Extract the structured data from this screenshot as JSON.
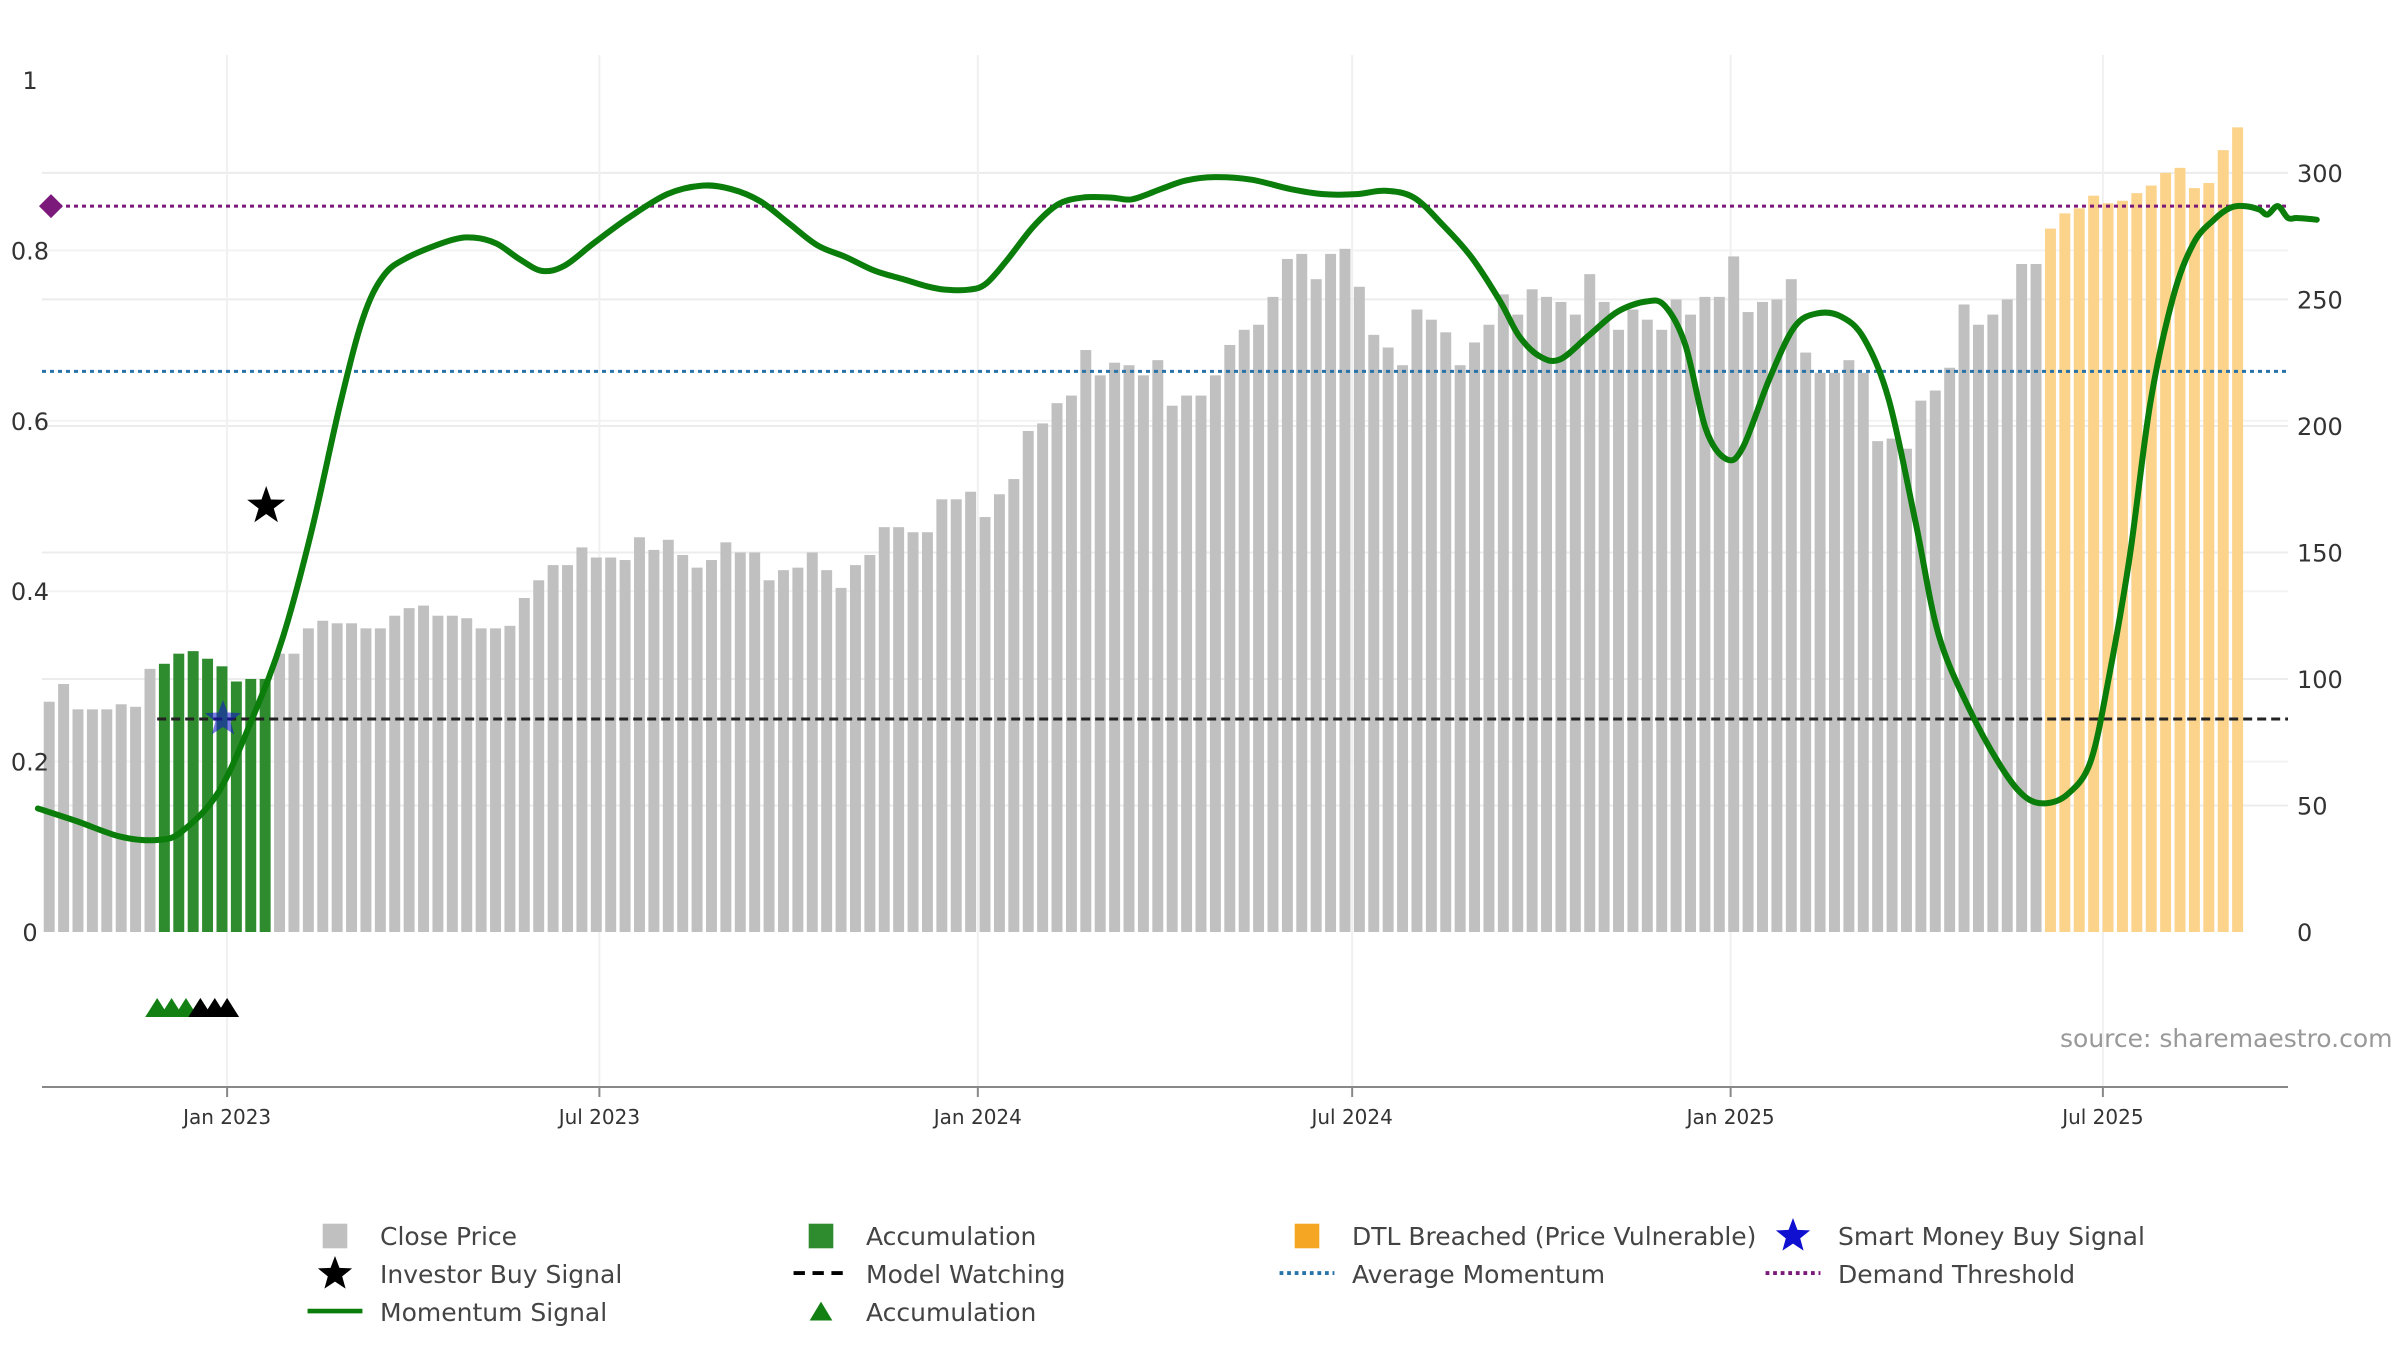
{
  "source_text": "source: sharemaestro.com",
  "colors": {
    "close": "#c0c0c0",
    "accumulation": "#2e8b2e",
    "dtl": "#fbd38a",
    "momentum": "#0a7d0a",
    "model_watching": "#222222",
    "average_momentum": "#2873a8",
    "demand_threshold": "#7b1a7b",
    "smart_money": "#1010d0",
    "investor_buy": "#000000",
    "acc_marker": "#138013"
  },
  "legend": [
    {
      "label": "Close Price",
      "icon": "square-grey"
    },
    {
      "label": "Accumulation",
      "icon": "square-green"
    },
    {
      "label": "DTL Breached (Price Vulnerable)",
      "icon": "square-orange"
    },
    {
      "label": "Smart Money Buy Signal",
      "icon": "star-blue"
    },
    {
      "label": "Investor Buy Signal",
      "icon": "star-black"
    },
    {
      "label": "Model Watching",
      "icon": "dash-black"
    },
    {
      "label": "Average Momentum",
      "icon": "dot-blue"
    },
    {
      "label": "Demand Threshold",
      "icon": "dot-purple"
    },
    {
      "label": "Momentum Signal",
      "icon": "line-green"
    },
    {
      "label": "Accumulation",
      "icon": "triangle-green"
    }
  ],
  "chart_data": {
    "type": "bar",
    "title": "",
    "x_axis": {
      "start": "2022-10-03",
      "end": "2025-09-29",
      "ticks": [
        {
          "date": "2023-01-01",
          "label": "Jan 2023"
        },
        {
          "date": "2023-07-01",
          "label": "Jul 2023"
        },
        {
          "date": "2024-01-01",
          "label": "Jan 2024"
        },
        {
          "date": "2024-07-01",
          "label": "Jul 2024"
        },
        {
          "date": "2025-01-01",
          "label": "Jan 2025"
        },
        {
          "date": "2025-07-01",
          "label": "Jul 2025"
        }
      ]
    },
    "y_left": {
      "range": [
        0,
        1
      ],
      "ticks": [
        0,
        0.2,
        0.4,
        0.6,
        0.8,
        1
      ],
      "tick_labels": [
        "0",
        "0.2",
        "0.4",
        "0.6",
        "0.8",
        "1"
      ]
    },
    "y_right": {
      "range": [
        0,
        330
      ],
      "ticks": [
        0,
        50,
        100,
        150,
        200,
        250,
        300
      ],
      "tick_labels": [
        "0",
        "50",
        "100",
        "150",
        "200",
        "250",
        "300"
      ]
    },
    "bar_interval_days": 7,
    "close_price": [
      91,
      98,
      88,
      88,
      88,
      90,
      89,
      104,
      106,
      110,
      111,
      108,
      105,
      99,
      100,
      100,
      110,
      110,
      120,
      123,
      122,
      122,
      120,
      120,
      125,
      128,
      129,
      125,
      125,
      124,
      120,
      120,
      121,
      132,
      139,
      145,
      145,
      152,
      148,
      148,
      147,
      156,
      151,
      155,
      149,
      144,
      147,
      154,
      150,
      150,
      139,
      143,
      144,
      150,
      143,
      136,
      145,
      149,
      160,
      160,
      158,
      158,
      171,
      171,
      174,
      164,
      173,
      179,
      198,
      201,
      209,
      212,
      230,
      220,
      225,
      224,
      220,
      226,
      208,
      212,
      212,
      220,
      232,
      238,
      240,
      251,
      266,
      268,
      258,
      268,
      270,
      255,
      236,
      231,
      224,
      246,
      242,
      237,
      224,
      233,
      240,
      252,
      244,
      254,
      251,
      249,
      244,
      260,
      249,
      238,
      246,
      242,
      238,
      250,
      244,
      251,
      251,
      267,
      245,
      249,
      250,
      258,
      229,
      221,
      221,
      226,
      221,
      194,
      195,
      191,
      210,
      214,
      223,
      248,
      240,
      244,
      250,
      264,
      264,
      278,
      284,
      286,
      291,
      288,
      289,
      292,
      295,
      300,
      302,
      294,
      296,
      309,
      318
    ],
    "accumulation_bars": [
      8,
      9,
      10,
      11,
      12,
      13,
      14,
      15
    ],
    "dtl_breached_from_bar": 139,
    "momentum_signal": [
      [
        "2022-10-01",
        0.145
      ],
      [
        "2022-10-20",
        0.13
      ],
      [
        "2022-11-10",
        0.112
      ],
      [
        "2022-11-28",
        0.108
      ],
      [
        "2022-12-10",
        0.118
      ],
      [
        "2022-12-28",
        0.165
      ],
      [
        "2023-01-14",
        0.255
      ],
      [
        "2023-01-28",
        0.345
      ],
      [
        "2023-02-11",
        0.47
      ],
      [
        "2023-02-25",
        0.62
      ],
      [
        "2023-03-08",
        0.72
      ],
      [
        "2023-03-18",
        0.77
      ],
      [
        "2023-03-30",
        0.792
      ],
      [
        "2023-04-20",
        0.812
      ],
      [
        "2023-05-01",
        0.815
      ],
      [
        "2023-05-12",
        0.808
      ],
      [
        "2023-05-23",
        0.79
      ],
      [
        "2023-06-03",
        0.776
      ],
      [
        "2023-06-14",
        0.782
      ],
      [
        "2023-06-28",
        0.808
      ],
      [
        "2023-07-15",
        0.838
      ],
      [
        "2023-08-03",
        0.866
      ],
      [
        "2023-08-20",
        0.876
      ],
      [
        "2023-09-03",
        0.872
      ],
      [
        "2023-09-17",
        0.858
      ],
      [
        "2023-10-01",
        0.832
      ],
      [
        "2023-10-15",
        0.806
      ],
      [
        "2023-10-29",
        0.792
      ],
      [
        "2023-11-12",
        0.776
      ],
      [
        "2023-11-26",
        0.766
      ],
      [
        "2023-12-07",
        0.758
      ],
      [
        "2023-12-16",
        0.754
      ],
      [
        "2023-12-28",
        0.754
      ],
      [
        "2024-01-05",
        0.761
      ],
      [
        "2024-01-15",
        0.788
      ],
      [
        "2024-01-28",
        0.828
      ],
      [
        "2024-02-09",
        0.854
      ],
      [
        "2024-02-21",
        0.862
      ],
      [
        "2024-03-06",
        0.862
      ],
      [
        "2024-03-16",
        0.86
      ],
      [
        "2024-03-30",
        0.872
      ],
      [
        "2024-04-11",
        0.882
      ],
      [
        "2024-04-25",
        0.886
      ],
      [
        "2024-05-13",
        0.883
      ],
      [
        "2024-06-01",
        0.872
      ],
      [
        "2024-06-17",
        0.866
      ],
      [
        "2024-07-03",
        0.866
      ],
      [
        "2024-07-17",
        0.87
      ],
      [
        "2024-07-31",
        0.862
      ],
      [
        "2024-08-14",
        0.83
      ],
      [
        "2024-08-28",
        0.792
      ],
      [
        "2024-09-11",
        0.74
      ],
      [
        "2024-09-20",
        0.7
      ],
      [
        "2024-09-30",
        0.676
      ],
      [
        "2024-10-10",
        0.672
      ],
      [
        "2024-10-24",
        0.7
      ],
      [
        "2024-11-07",
        0.728
      ],
      [
        "2024-11-21",
        0.74
      ],
      [
        "2024-11-30",
        0.735
      ],
      [
        "2024-12-10",
        0.689
      ],
      [
        "2024-12-20",
        0.59
      ],
      [
        "2024-12-30",
        0.555
      ],
      [
        "2025-01-07",
        0.569
      ],
      [
        "2025-01-20",
        0.65
      ],
      [
        "2025-02-01",
        0.71
      ],
      [
        "2025-02-12",
        0.726
      ],
      [
        "2025-02-24",
        0.722
      ],
      [
        "2025-03-07",
        0.696
      ],
      [
        "2025-03-19",
        0.624
      ],
      [
        "2025-04-01",
        0.48
      ],
      [
        "2025-04-12",
        0.35
      ],
      [
        "2025-04-27",
        0.262
      ],
      [
        "2025-05-13",
        0.192
      ],
      [
        "2025-05-24",
        0.159
      ],
      [
        "2025-06-03",
        0.151
      ],
      [
        "2025-06-14",
        0.162
      ],
      [
        "2025-06-25",
        0.2
      ],
      [
        "2025-07-04",
        0.3
      ],
      [
        "2025-07-14",
        0.44
      ],
      [
        "2025-07-24",
        0.62
      ],
      [
        "2025-08-04",
        0.744
      ],
      [
        "2025-08-14",
        0.808
      ],
      [
        "2025-08-24",
        0.836
      ],
      [
        "2025-09-01",
        0.85
      ],
      [
        "2025-09-08",
        0.852
      ],
      [
        "2025-09-15",
        0.848
      ],
      [
        "2025-09-19",
        0.842
      ],
      [
        "2025-09-24",
        0.852
      ],
      [
        "2025-09-29",
        0.838
      ],
      [
        "2025-10-03",
        0.838
      ],
      [
        "2025-10-09",
        0.837
      ],
      [
        "2025-10-13",
        0.836
      ]
    ],
    "model_watching_level": 0.25,
    "model_watching_from": "2022-11-28",
    "average_momentum_level": 0.658,
    "demand_threshold_level": 0.852,
    "investor_buy_signal": {
      "date": "2023-01-20",
      "value": 0.5
    },
    "smart_money_buy_signal": {
      "date": "2022-12-30",
      "value": 0.25
    },
    "accumulation_markers": {
      "green": [
        "2022-11-28",
        "2022-12-05",
        "2022-12-12",
        "2022-12-19"
      ],
      "black": [
        "2022-12-19",
        "2022-12-26",
        "2023-01-01"
      ]
    },
    "legend_position": "bottom"
  }
}
